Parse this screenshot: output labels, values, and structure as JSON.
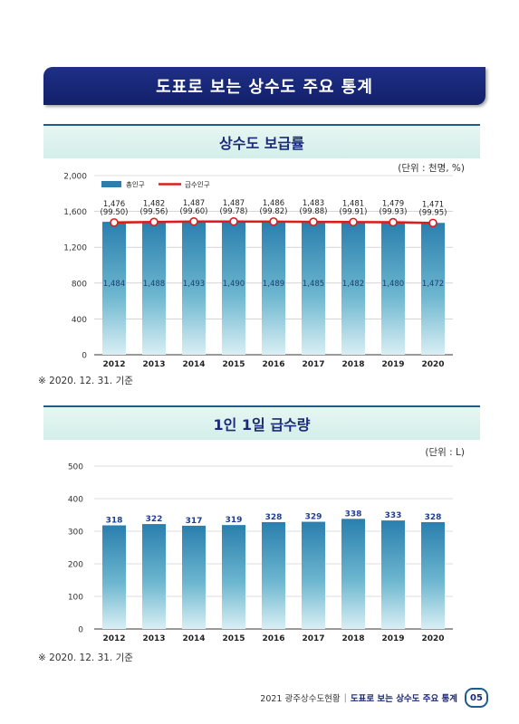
{
  "header": {
    "title": "도표로 보는 상수도 주요 통계"
  },
  "section1": {
    "title": "상수도 보급률",
    "unit": "(단위 : 천명, %)",
    "note": "※ 2020. 12. 31. 기준"
  },
  "section2": {
    "title": "1인 1일 급수량",
    "unit": "(단위 : L)",
    "note": "※ 2020. 12. 31. 기준"
  },
  "footer": {
    "doc": "2021 광주상수도현황",
    "section": "도표로 보는 상수도 주요 통계",
    "page": "05"
  },
  "colors": {
    "navy": "#13206a",
    "teal_top": "#2a7fae",
    "teal_bottom": "#cfeaf0",
    "line": "#d81e1e"
  },
  "chart_data": [
    {
      "type": "bar",
      "categories": [
        "2012",
        "2013",
        "2014",
        "2015",
        "2016",
        "2017",
        "2018",
        "2019",
        "2020"
      ],
      "ylim": [
        0,
        2000
      ],
      "yticks": [
        0,
        400,
        800,
        1200,
        1600,
        2000
      ],
      "yticks_labels": [
        "0",
        "400",
        "800",
        "1,200",
        "1,600",
        "2,000"
      ],
      "series": [
        {
          "name": "총인구",
          "type": "bar",
          "values": [
            1484,
            1488,
            1493,
            1490,
            1489,
            1485,
            1482,
            1480,
            1472
          ],
          "labels": [
            "1,484",
            "1,488",
            "1,493",
            "1,490",
            "1,489",
            "1,485",
            "1,482",
            "1,480",
            "1,472"
          ]
        },
        {
          "name": "급수인구",
          "type": "line",
          "values": [
            1476,
            1482,
            1487,
            1487,
            1486,
            1483,
            1481,
            1479,
            1471
          ],
          "labels": [
            "1,476",
            "1,482",
            "1,487",
            "1,487",
            "1,486",
            "1,483",
            "1,481",
            "1,479",
            "1,471"
          ],
          "rates": [
            "(99.50)",
            "(99.56)",
            "(99.60)",
            "(99.78)",
            "(99.82)",
            "(99.88)",
            "(99.91)",
            "(99.93)",
            "(99.95)"
          ]
        }
      ],
      "legend": "top-left",
      "grid": true
    },
    {
      "type": "bar",
      "categories": [
        "2012",
        "2013",
        "2014",
        "2015",
        "2016",
        "2017",
        "2018",
        "2019",
        "2020"
      ],
      "ylim": [
        0,
        500
      ],
      "yticks": [
        0,
        100,
        200,
        300,
        400,
        500
      ],
      "yticks_labels": [
        "0",
        "100",
        "200",
        "300",
        "400",
        "500"
      ],
      "series": [
        {
          "type": "bar",
          "values": [
            318,
            322,
            317,
            319,
            328,
            329,
            338,
            333,
            328
          ],
          "labels": [
            "318",
            "322",
            "317",
            "319",
            "328",
            "329",
            "338",
            "333",
            "328"
          ]
        }
      ],
      "grid": true
    }
  ]
}
